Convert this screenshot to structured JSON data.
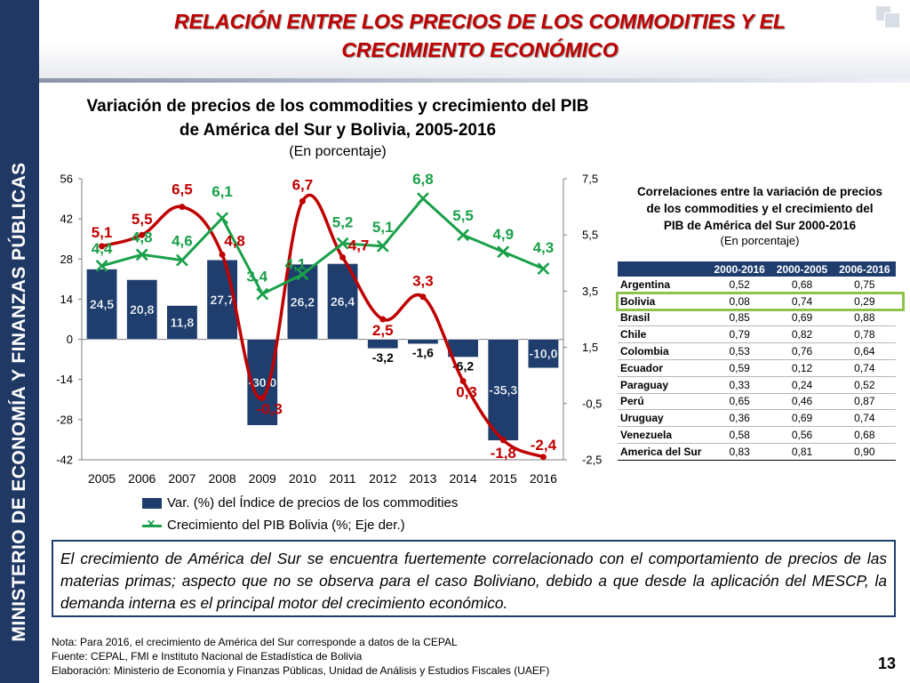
{
  "sidebar": {
    "text": "MINISTERIO DE ECONOMÍA Y FINANZAS PÚBLICAS"
  },
  "slide": {
    "title_line1": "RELACIÓN ENTRE LOS PRECIOS DE LOS COMMODITIES Y EL",
    "title_line2": "CRECIMIENTO ECONÓMICO",
    "page_number": "13"
  },
  "chart_data": {
    "type": "bar+line",
    "title_line1": "Variación de precios de los commodities y crecimiento del PIB",
    "title_line2": "de América del Sur y Bolivia, 2005-2016",
    "subtitle": "(En porcentaje)",
    "categories": [
      "2005",
      "2006",
      "2007",
      "2008",
      "2009",
      "2010",
      "2011",
      "2012",
      "2013",
      "2014",
      "2015",
      "2016"
    ],
    "left_axis": {
      "min": -42,
      "max": 56,
      "ticks": [
        "56",
        "42",
        "28",
        "14",
        "0",
        "-14",
        "-28",
        "-42"
      ]
    },
    "right_axis": {
      "min": -2.5,
      "max": 7.5,
      "ticks": [
        "7,5",
        "5,5",
        "3,5",
        "1,5",
        "-0,5",
        "-2,5"
      ]
    },
    "grid": false,
    "legend_position": "bottom",
    "series": [
      {
        "name": "Var. (%) del Índice de precios de los commodities",
        "type": "bar",
        "axis": "left",
        "color": "#1f3e6e",
        "values": [
          24.5,
          20.8,
          11.8,
          27.7,
          -30.0,
          26.2,
          26.4,
          -3.2,
          -1.6,
          -6.2,
          -35.3,
          -10.0
        ],
        "labels": [
          "24,5",
          "20,8",
          "11,8",
          "27,7",
          "-30,0",
          "26,2",
          "26,4",
          "-3,2",
          "-1,6",
          "-6,2",
          "-35,3",
          "-10,0"
        ]
      },
      {
        "name": "Crecimiento del PIB Bolivia (%; Eje der.)",
        "type": "line",
        "axis": "right",
        "color": "#1aa04a",
        "values": [
          4.4,
          4.8,
          4.6,
          6.1,
          3.4,
          4.1,
          5.2,
          5.1,
          6.8,
          5.5,
          4.9,
          4.3
        ],
        "labels": [
          "4,4",
          "4,8",
          "4,6",
          "6,1",
          "3,4",
          "4,1",
          "5,2",
          "5,1",
          "6,8",
          "5,5",
          "4,9",
          "4,3"
        ]
      },
      {
        "type": "line",
        "axis": "right",
        "color": "#c00000",
        "smooth": true,
        "values": [
          5.1,
          5.5,
          6.5,
          4.8,
          -0.3,
          6.7,
          4.7,
          2.5,
          3.3,
          0.3,
          -1.8,
          -2.4
        ],
        "labels": [
          "5,1",
          "5,5",
          "6,5",
          "4,8",
          "-0,3",
          "6,7",
          "4,7",
          "2,5",
          "3,3",
          "0,3",
          "-1,8",
          "-2,4"
        ]
      }
    ]
  },
  "correlations": {
    "title_line1": "Correlaciones entre la variación de precios",
    "title_line2": "de los commodities y el crecimiento del",
    "title_line3": "PIB de América del Sur 2000-2016",
    "subtitle": "(En porcentaje)",
    "columns": [
      "",
      "2000-2016",
      "2000-2005",
      "2006-2016"
    ],
    "rows": [
      [
        "Argentina",
        "0,52",
        "0,68",
        "0,75"
      ],
      [
        "Bolivia",
        "0,08",
        "0,74",
        "0,29"
      ],
      [
        "Brasil",
        "0,85",
        "0,69",
        "0,88"
      ],
      [
        "Chile",
        "0,79",
        "0,82",
        "0,78"
      ],
      [
        "Colombia",
        "0,53",
        "0,76",
        "0,64"
      ],
      [
        "Ecuador",
        "0,59",
        "0,12",
        "0,74"
      ],
      [
        "Paraguay",
        "0,33",
        "0,24",
        "0,52"
      ],
      [
        "Perú",
        "0,65",
        "0,46",
        "0,87"
      ],
      [
        "Uruguay",
        "0,36",
        "0,69",
        "0,74"
      ],
      [
        "Venezuela",
        "0,58",
        "0,56",
        "0,68"
      ],
      [
        "America del Sur",
        "0,83",
        "0,81",
        "0,90"
      ]
    ],
    "highlight_color": "#8dc34a"
  },
  "conclusion": "El crecimiento de América del Sur se encuentra fuertemente correlacionado con el comportamiento de precios de las materias primas; aspecto que no se observa para el caso Boliviano, debido a que desde la aplicación del MESCP, la demanda interna es el principal motor del crecimiento económico.",
  "footnotes": {
    "note": "Nota: Para 2016, el crecimiento de América del Sur corresponde a datos de la CEPAL",
    "source": "Fuente: CEPAL, FMI e Instituto Nacional de Estadística de Bolivia",
    "elaboration": "Elaboración: Ministerio de Economía y Finanzas Públicas, Unidad de Análisis y Estudios Fiscales (UAEF)"
  }
}
